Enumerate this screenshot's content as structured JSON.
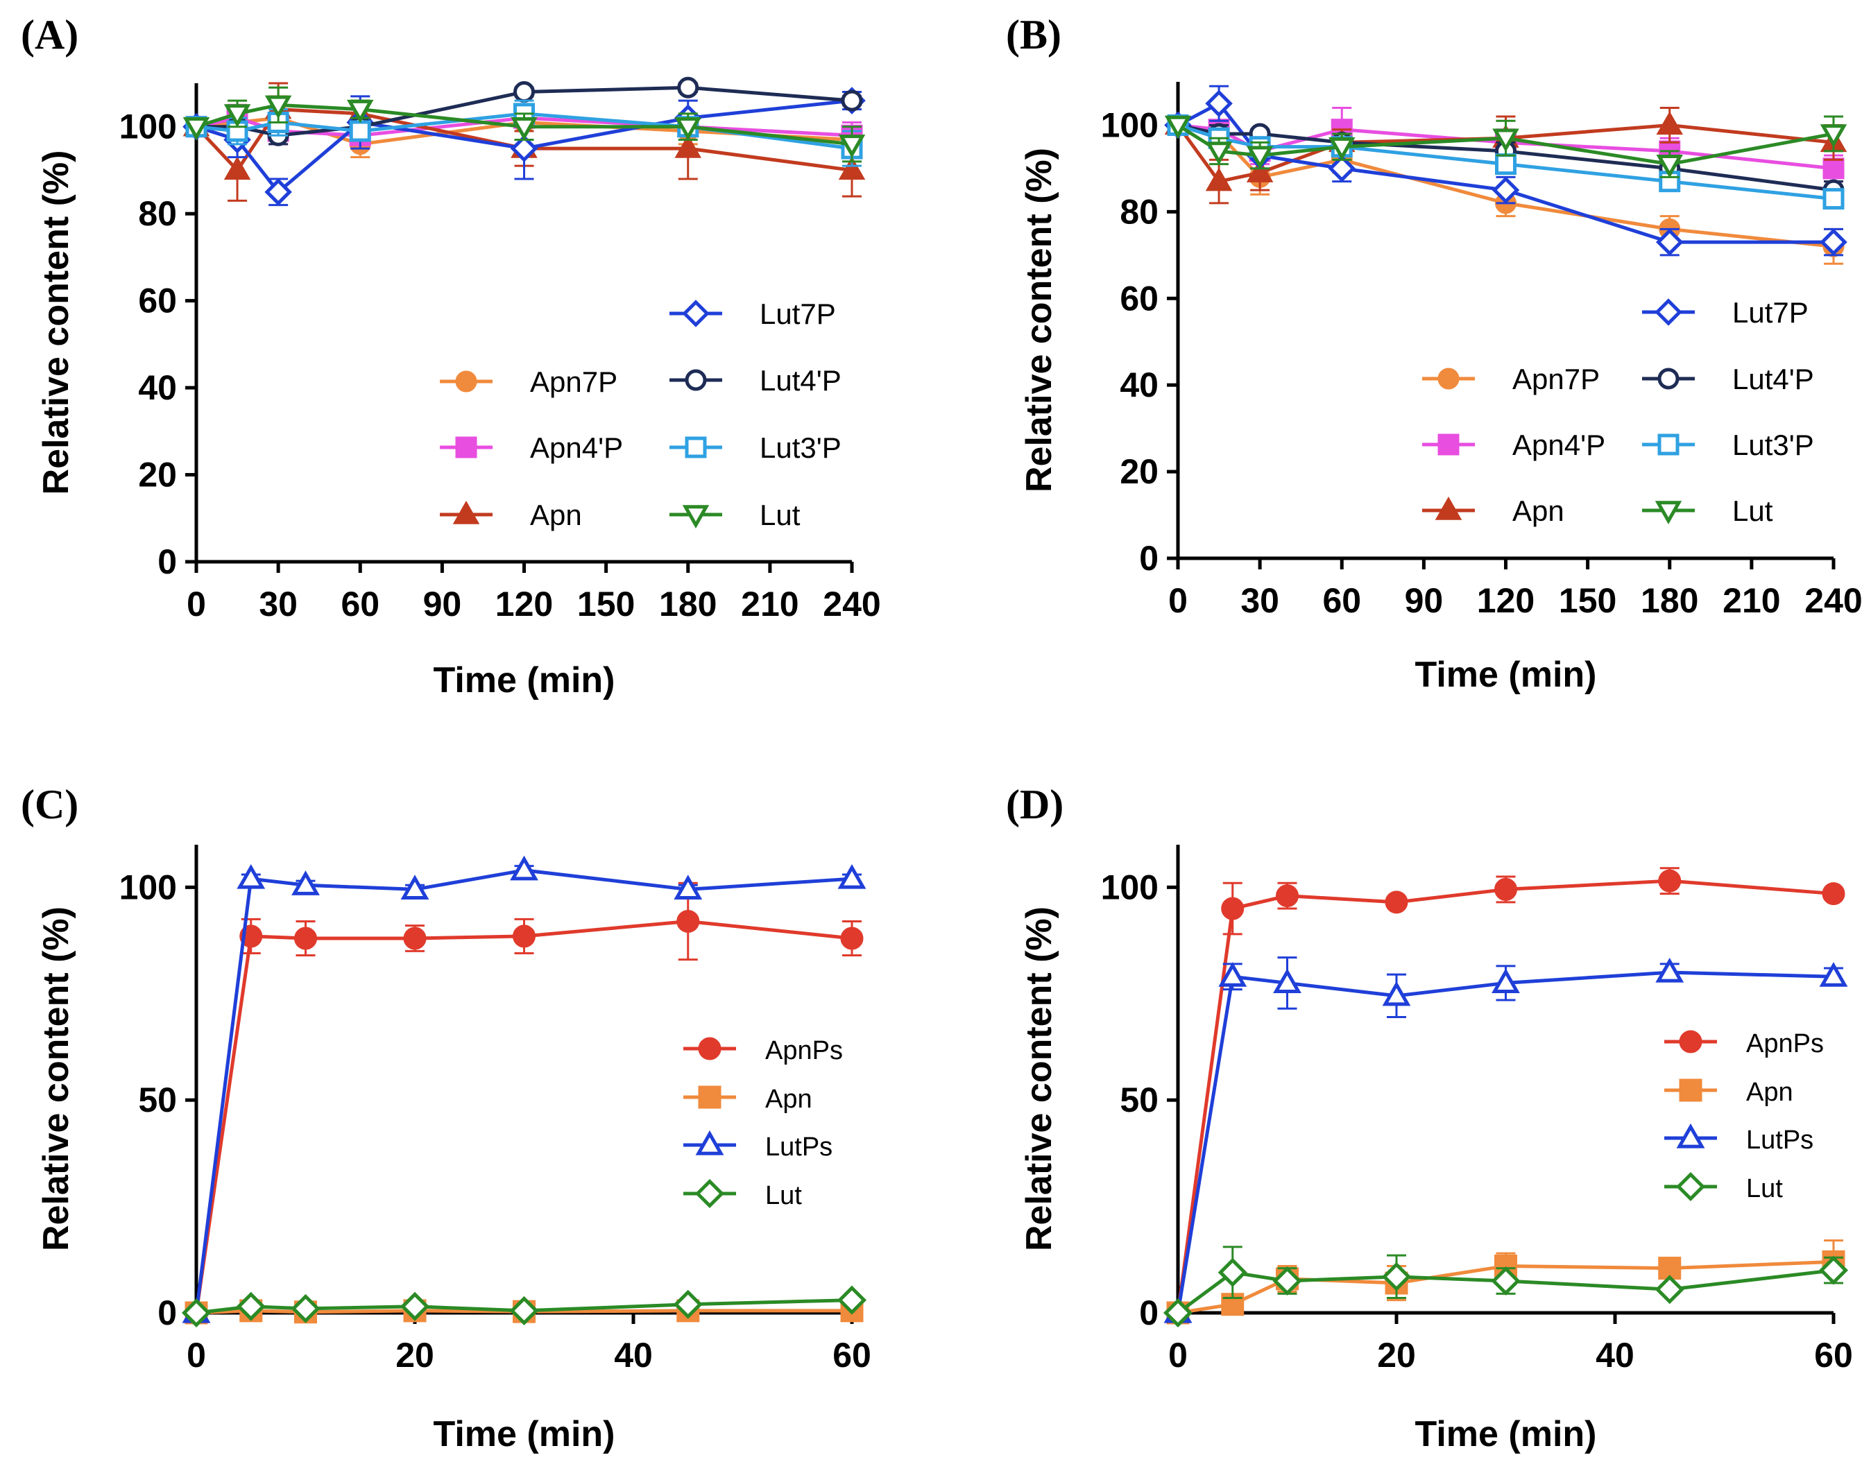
{
  "chart_data": [
    {
      "type": "line",
      "panel_label": "(A)",
      "xlabel": "Time (min)",
      "ylabel": "Relative content (%)",
      "xlim": [
        0,
        240
      ],
      "ylim": [
        0,
        110
      ],
      "xticks": [
        0,
        30,
        60,
        90,
        120,
        150,
        180,
        210,
        240
      ],
      "yticks": [
        0,
        20,
        40,
        60,
        80,
        100
      ],
      "legend": "bottom-right, two columns",
      "series": [
        {
          "name": "Apn7P",
          "color": "#f08a3c",
          "marker": "circle",
          "filled": true,
          "x": [
            0,
            15,
            30,
            60,
            120,
            180,
            240
          ],
          "y": [
            100,
            101,
            102,
            96,
            101,
            99,
            97
          ],
          "err": [
            0,
            4,
            5,
            3,
            4,
            3,
            3
          ]
        },
        {
          "name": "Apn4'P",
          "color": "#e84ee0",
          "marker": "square",
          "filled": true,
          "x": [
            0,
            15,
            30,
            60,
            120,
            180,
            240
          ],
          "y": [
            100,
            102,
            99,
            98,
            102,
            100,
            98
          ],
          "err": [
            0,
            3,
            3,
            2,
            3,
            2,
            3
          ]
        },
        {
          "name": "Apn",
          "color": "#c23b1f",
          "marker": "triangle",
          "filled": true,
          "x": [
            0,
            15,
            30,
            60,
            120,
            180,
            240
          ],
          "y": [
            100,
            90,
            104,
            103,
            95,
            95,
            90
          ],
          "err": [
            0,
            7,
            6,
            2,
            4,
            7,
            6
          ]
        },
        {
          "name": "Lut7P",
          "color": "#1f3fd8",
          "marker": "diamond",
          "filled": false,
          "x": [
            0,
            15,
            30,
            60,
            120,
            180,
            240
          ],
          "y": [
            100,
            97,
            85,
            101,
            95,
            102,
            106
          ],
          "err": [
            0,
            4,
            3,
            6,
            7,
            4,
            2
          ]
        },
        {
          "name": "Lut4'P",
          "color": "#1e2c55",
          "marker": "circle",
          "filled": false,
          "x": [
            0,
            15,
            30,
            60,
            120,
            180,
            240
          ],
          "y": [
            100,
            100,
            98,
            100,
            108,
            109,
            106
          ],
          "err": [
            0,
            2,
            2,
            2,
            1,
            1,
            1
          ]
        },
        {
          "name": "Lut3'P",
          "color": "#2fa1e2",
          "marker": "square",
          "filled": false,
          "x": [
            0,
            15,
            30,
            60,
            120,
            180,
            240
          ],
          "y": [
            100,
            99,
            101,
            99,
            103,
            100,
            95
          ],
          "err": [
            0,
            3,
            3,
            2,
            3,
            2,
            4
          ]
        },
        {
          "name": "Lut",
          "color": "#2b8a25",
          "marker": "triangle-down",
          "filled": false,
          "x": [
            0,
            15,
            30,
            60,
            120,
            180,
            240
          ],
          "y": [
            100,
            103,
            105,
            104,
            100,
            100,
            96
          ],
          "err": [
            0,
            3,
            4,
            2,
            3,
            3,
            4
          ]
        }
      ]
    },
    {
      "type": "line",
      "panel_label": "(B)",
      "xlabel": "Time (min)",
      "ylabel": "Relative content (%)",
      "xlim": [
        0,
        240
      ],
      "ylim": [
        0,
        110
      ],
      "xticks": [
        0,
        30,
        60,
        90,
        120,
        150,
        180,
        210,
        240
      ],
      "yticks": [
        0,
        20,
        40,
        60,
        80,
        100
      ],
      "legend": "bottom-right, two columns",
      "series": [
        {
          "name": "Apn7P",
          "color": "#f08a3c",
          "marker": "circle",
          "filled": true,
          "x": [
            0,
            15,
            30,
            60,
            120,
            180,
            240
          ],
          "y": [
            100,
            98,
            88,
            92,
            82,
            76,
            72
          ],
          "err": [
            0,
            3,
            4,
            3,
            3,
            3,
            4
          ]
        },
        {
          "name": "Apn4'P",
          "color": "#e84ee0",
          "marker": "square",
          "filled": true,
          "x": [
            0,
            15,
            30,
            60,
            120,
            180,
            240
          ],
          "y": [
            100,
            99,
            94,
            99,
            96,
            94,
            90
          ],
          "err": [
            0,
            2,
            3,
            5,
            3,
            3,
            3
          ]
        },
        {
          "name": "Apn",
          "color": "#c23b1f",
          "marker": "triangle",
          "filled": true,
          "x": [
            0,
            15,
            30,
            60,
            120,
            180,
            240
          ],
          "y": [
            100,
            87,
            89,
            96,
            97,
            100,
            96
          ],
          "err": [
            0,
            5,
            4,
            3,
            5,
            4,
            4
          ]
        },
        {
          "name": "Lut7P",
          "color": "#1f3fd8",
          "marker": "diamond",
          "filled": false,
          "x": [
            0,
            15,
            30,
            60,
            120,
            180,
            240
          ],
          "y": [
            100,
            105,
            93,
            90,
            85,
            73,
            73
          ],
          "err": [
            0,
            4,
            3,
            3,
            3,
            3,
            3
          ]
        },
        {
          "name": "Lut4'P",
          "color": "#1e2c55",
          "marker": "circle",
          "filled": false,
          "x": [
            0,
            15,
            30,
            60,
            120,
            180,
            240
          ],
          "y": [
            100,
            98,
            98,
            96,
            94,
            90,
            85
          ],
          "err": [
            0,
            2,
            1,
            2,
            2,
            2,
            2
          ]
        },
        {
          "name": "Lut3'P",
          "color": "#2fa1e2",
          "marker": "square",
          "filled": false,
          "x": [
            0,
            15,
            30,
            60,
            120,
            180,
            240
          ],
          "y": [
            100,
            97,
            95,
            95,
            91,
            87,
            83
          ],
          "err": [
            0,
            2,
            2,
            2,
            2,
            2,
            2
          ]
        },
        {
          "name": "Lut",
          "color": "#2b8a25",
          "marker": "triangle-down",
          "filled": false,
          "x": [
            0,
            15,
            30,
            60,
            120,
            180,
            240
          ],
          "y": [
            100,
            94,
            93,
            95,
            97,
            91,
            98
          ],
          "err": [
            0,
            3,
            3,
            3,
            4,
            3,
            4
          ]
        }
      ]
    },
    {
      "type": "line",
      "panel_label": "(C)",
      "xlabel": "Time (min)",
      "ylabel": "Relative content (%)",
      "xlim": [
        0,
        60
      ],
      "ylim": [
        0,
        110
      ],
      "xticks": [
        0,
        20,
        40,
        60
      ],
      "yticks": [
        0,
        50,
        100
      ],
      "legend": "middle-right, one column",
      "series": [
        {
          "name": "ApnPs",
          "color": "#e03a2c",
          "marker": "circle",
          "filled": true,
          "x": [
            0,
            5,
            10,
            20,
            30,
            45,
            60
          ],
          "y": [
            0,
            88.5,
            88,
            88,
            88.5,
            92,
            88
          ],
          "err": [
            0,
            4,
            4,
            3,
            4,
            9,
            4
          ]
        },
        {
          "name": "Apn",
          "color": "#f08a3c",
          "marker": "square",
          "filled": true,
          "x": [
            0,
            5,
            10,
            20,
            30,
            45,
            60
          ],
          "y": [
            0,
            0.5,
            0.2,
            0.5,
            0.3,
            0.5,
            0.5
          ],
          "err": [
            0,
            0,
            0,
            0,
            0,
            0,
            0
          ]
        },
        {
          "name": "LutPs",
          "color": "#1f3fd8",
          "marker": "triangle",
          "filled": false,
          "x": [
            0,
            5,
            10,
            20,
            30,
            45,
            60
          ],
          "y": [
            0,
            102,
            100.5,
            99.5,
            104,
            99.5,
            102
          ],
          "err": [
            0,
            1,
            1,
            1,
            1,
            1,
            1
          ]
        },
        {
          "name": "Lut",
          "color": "#2b8a25",
          "marker": "diamond",
          "filled": false,
          "x": [
            0,
            5,
            10,
            20,
            30,
            45,
            60
          ],
          "y": [
            0,
            1.5,
            1,
            1.5,
            0.5,
            2,
            3
          ],
          "err": [
            0,
            0,
            0,
            0,
            0,
            0,
            0
          ]
        }
      ]
    },
    {
      "type": "line",
      "panel_label": "(D)",
      "xlabel": "Time (min)",
      "ylabel": "Relative content (%)",
      "xlim": [
        0,
        60
      ],
      "ylim": [
        0,
        110
      ],
      "xticks": [
        0,
        20,
        40,
        60
      ],
      "yticks": [
        0,
        50,
        100
      ],
      "legend": "middle-right, one column",
      "series": [
        {
          "name": "ApnPs",
          "color": "#e03a2c",
          "marker": "circle",
          "filled": true,
          "x": [
            0,
            5,
            10,
            20,
            30,
            45,
            60
          ],
          "y": [
            0,
            95,
            98,
            96.5,
            99.5,
            101.5,
            98.5
          ],
          "err": [
            0,
            6,
            3,
            1,
            3,
            3,
            1
          ]
        },
        {
          "name": "Apn",
          "color": "#f08a3c",
          "marker": "square",
          "filled": true,
          "x": [
            0,
            5,
            10,
            20,
            30,
            45,
            60
          ],
          "y": [
            0,
            2,
            8,
            7,
            11,
            10.5,
            12
          ],
          "err": [
            0,
            1,
            3,
            4,
            3,
            2,
            5
          ]
        },
        {
          "name": "LutPs",
          "color": "#1f3fd8",
          "marker": "triangle",
          "filled": false,
          "x": [
            0,
            5,
            10,
            20,
            30,
            45,
            60
          ],
          "y": [
            0,
            79,
            77.5,
            74.5,
            77.5,
            80,
            79
          ],
          "err": [
            0,
            3,
            6,
            5,
            4,
            2,
            2
          ]
        },
        {
          "name": "Lut",
          "color": "#2b8a25",
          "marker": "diamond",
          "filled": false,
          "x": [
            0,
            5,
            10,
            20,
            30,
            45,
            60
          ],
          "y": [
            0,
            9.5,
            7.5,
            8.5,
            7.5,
            5.5,
            10
          ],
          "err": [
            0,
            6,
            3,
            5,
            3,
            1,
            3
          ]
        }
      ]
    }
  ]
}
